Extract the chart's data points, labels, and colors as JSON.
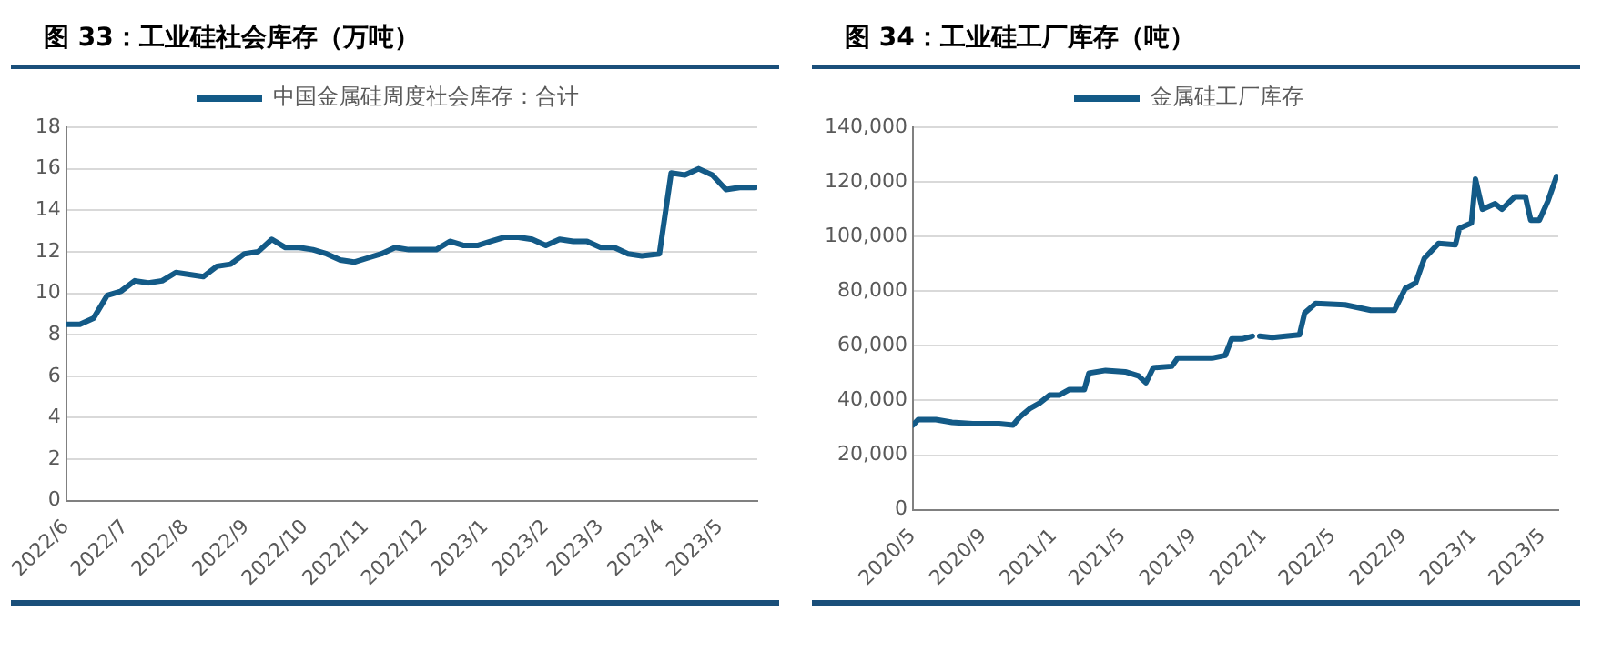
{
  "chart_data": [
    {
      "type": "line",
      "title": "图 33：工业硅社会库存（万吨）",
      "legend": "top",
      "grid": "y",
      "marker": "none",
      "line_style": "solid",
      "xlim": [
        "2022-06-01",
        "2023-05-20"
      ],
      "xticks": [
        {
          "value": "2022-06-01",
          "label": "2022/6"
        },
        {
          "value": "2022-07-01",
          "label": "2022/7"
        },
        {
          "value": "2022-08-01",
          "label": "2022/8"
        },
        {
          "value": "2022-09-01",
          "label": "2022/9"
        },
        {
          "value": "2022-10-01",
          "label": "2022/10"
        },
        {
          "value": "2022-11-01",
          "label": "2022/11"
        },
        {
          "value": "2022-12-01",
          "label": "2022/12"
        },
        {
          "value": "2023-01-01",
          "label": "2023/1"
        },
        {
          "value": "2023-02-01",
          "label": "2023/2"
        },
        {
          "value": "2023-03-01",
          "label": "2023/3"
        },
        {
          "value": "2023-04-01",
          "label": "2023/4"
        },
        {
          "value": "2023-05-01",
          "label": "2023/5"
        }
      ],
      "ylim": [
        0,
        18
      ],
      "yticks": [
        0,
        2,
        4,
        6,
        8,
        10,
        12,
        14,
        16,
        18
      ],
      "x": [
        "2022-06-01",
        "2022-06-08",
        "2022-06-15",
        "2022-06-22",
        "2022-06-29",
        "2022-07-06",
        "2022-07-13",
        "2022-07-20",
        "2022-07-27",
        "2022-08-03",
        "2022-08-10",
        "2022-08-17",
        "2022-08-24",
        "2022-08-31",
        "2022-09-07",
        "2022-09-14",
        "2022-09-21",
        "2022-09-28",
        "2022-10-05",
        "2022-10-12",
        "2022-10-19",
        "2022-10-26",
        "2022-11-02",
        "2022-11-09",
        "2022-11-16",
        "2022-11-23",
        "2022-11-30",
        "2022-12-07",
        "2022-12-14",
        "2022-12-21",
        "2022-12-28",
        "2023-01-04",
        "2023-01-11",
        "2023-01-18",
        "2023-01-25",
        "2023-02-01",
        "2023-02-08",
        "2023-02-15",
        "2023-02-22",
        "2023-03-01",
        "2023-03-08",
        "2023-03-15",
        "2023-03-22",
        "2023-03-31",
        "2023-04-06",
        "2023-04-13",
        "2023-04-20",
        "2023-04-27",
        "2023-05-04",
        "2023-05-11",
        "2023-05-19"
      ],
      "series": [
        {
          "name": "中国金属硅周度社会库存：合计",
          "color": "#135a87",
          "values": [
            8.5,
            8.5,
            8.8,
            9.9,
            10.1,
            10.6,
            10.5,
            10.6,
            11.0,
            10.9,
            10.8,
            11.3,
            11.4,
            11.9,
            12.0,
            12.6,
            12.2,
            12.2,
            12.1,
            11.9,
            11.6,
            11.5,
            11.7,
            11.9,
            12.2,
            12.1,
            12.1,
            12.1,
            12.5,
            12.3,
            12.3,
            12.5,
            12.7,
            12.7,
            12.6,
            12.3,
            12.6,
            12.5,
            12.5,
            12.2,
            12.2,
            11.9,
            11.8,
            11.9,
            15.8,
            15.7,
            16.0,
            15.7,
            15.0,
            15.1,
            15.1
          ]
        }
      ]
    },
    {
      "type": "line",
      "title": "图 34：工业硅工厂库存（吨）",
      "legend": "top",
      "grid": "y",
      "marker": "none",
      "line_style": "solid",
      "xlim": [
        "2020-05-01",
        "2023-05-28"
      ],
      "xticks": [
        {
          "value": "2020-05-01",
          "label": "2020/5"
        },
        {
          "value": "2020-09-01",
          "label": "2020/9"
        },
        {
          "value": "2021-01-01",
          "label": "2021/1"
        },
        {
          "value": "2021-05-01",
          "label": "2021/5"
        },
        {
          "value": "2021-09-01",
          "label": "2021/9"
        },
        {
          "value": "2022-01-01",
          "label": "2022/1"
        },
        {
          "value": "2022-05-01",
          "label": "2022/5"
        },
        {
          "value": "2022-09-01",
          "label": "2022/9"
        },
        {
          "value": "2023-01-01",
          "label": "2023/1"
        },
        {
          "value": "2023-05-01",
          "label": "2023/5"
        }
      ],
      "ylim": [
        0,
        140000
      ],
      "yticks": [
        0,
        {
          "value": 20000,
          "label": "20,000"
        },
        {
          "value": 40000,
          "label": "40,000"
        },
        {
          "value": 60000,
          "label": "60,000"
        },
        {
          "value": 80000,
          "label": "80,000"
        },
        {
          "value": 100000,
          "label": "100,000"
        },
        {
          "value": 120000,
          "label": "120,000"
        },
        {
          "value": 140000,
          "label": "140,000"
        }
      ],
      "x": [
        "2020-05-01",
        "2020-05-10",
        "2020-06-10",
        "2020-07-08",
        "2020-08-13",
        "2020-09-28",
        "2020-10-22",
        "2020-11-03",
        "2020-11-20",
        "2020-12-07",
        "2020-12-25",
        "2021-01-11",
        "2021-01-28",
        "2021-02-23",
        "2021-03-03",
        "2021-04-01",
        "2021-05-05",
        "2021-05-28",
        "2021-06-10",
        "2021-06-23",
        "2021-07-25",
        "2021-08-04",
        "2021-10-03",
        "2021-10-26",
        "2021-11-06",
        "2021-11-24",
        "2021-12-12",
        "2021-12-19",
        "2021-12-25",
        "2022-01-16",
        "2022-02-08",
        "2022-03-04",
        "2022-03-13",
        "2022-04-01",
        "2022-05-22",
        "2022-07-06",
        "2022-08-16",
        "2022-09-04",
        "2022-09-22",
        "2022-10-07",
        "2022-11-01",
        "2022-11-30",
        "2022-12-07",
        "2022-12-28",
        "2023-01-04",
        "2023-01-16",
        "2023-02-07",
        "2023-02-19",
        "2023-03-13",
        "2023-04-01",
        "2023-04-10",
        "2023-04-25",
        "2023-05-10",
        "2023-05-25"
      ],
      "series": [
        {
          "name": "金属硅工厂库存",
          "color": "#135a87",
          "values": [
            31000,
            33000,
            33000,
            32000,
            31500,
            31500,
            31000,
            34000,
            37000,
            39000,
            42000,
            42000,
            44000,
            44000,
            50000,
            51000,
            50500,
            49000,
            46500,
            52000,
            52500,
            55500,
            55500,
            56500,
            62500,
            62500,
            63500,
            null,
            63500,
            63000,
            63500,
            64000,
            72000,
            75500,
            75000,
            73000,
            73000,
            81000,
            83000,
            92000,
            97500,
            97000,
            103000,
            105000,
            121000,
            110000,
            112000,
            110000,
            114500,
            114500,
            106000,
            106000,
            113000,
            122000
          ]
        }
      ]
    }
  ]
}
